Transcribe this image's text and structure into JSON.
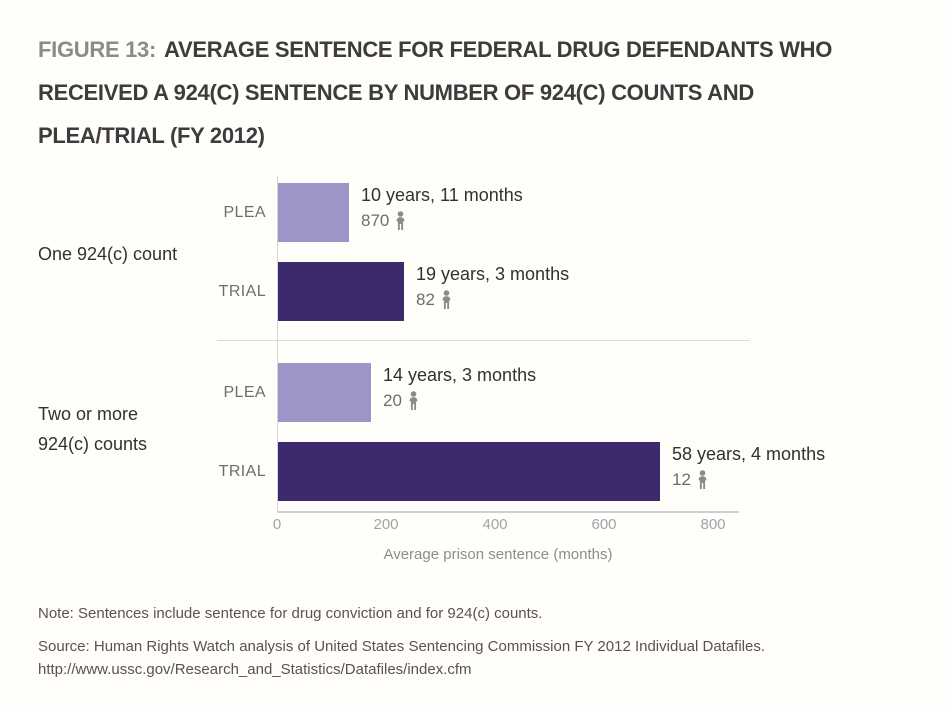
{
  "title": {
    "prefix": "FIGURE 13:",
    "line1": "AVERAGE SENTENCE FOR FEDERAL DRUG DEFENDANTS WHO",
    "line2": "RECEIVED A 924(C) SENTENCE BY NUMBER OF 924(C) COUNTS AND",
    "line3": "PLEA/TRIAL (FY 2012)"
  },
  "chart_data": {
    "type": "bar",
    "orientation": "horizontal",
    "units": "months",
    "xlabel": "Average prison sentence (months)",
    "xlim": [
      0,
      800
    ],
    "xticks": [
      0,
      200,
      400,
      600,
      800
    ],
    "colors": {
      "plea": "#9c95c6",
      "trial": "#3d2a6d"
    },
    "icon": "person-icon",
    "groups": [
      {
        "label": "One 924(c) count",
        "label_lines": [
          "One 924(c) count"
        ],
        "bars": [
          {
            "category": "PLEA",
            "months": 131,
            "duration_label": "10 years, 11 months",
            "count": 870,
            "color_key": "plea"
          },
          {
            "category": "TRIAL",
            "months": 231,
            "duration_label": "19 years, 3 months",
            "count": 82,
            "color_key": "trial"
          }
        ]
      },
      {
        "label": "Two or more 924(c) counts",
        "label_lines": [
          "Two or more",
          "924(c) counts"
        ],
        "bars": [
          {
            "category": "PLEA",
            "months": 171,
            "duration_label": "14 years, 3 months",
            "count": 20,
            "color_key": "plea"
          },
          {
            "category": "TRIAL",
            "months": 700,
            "duration_label": "58 years, 4 months",
            "count": 12,
            "color_key": "trial"
          }
        ]
      }
    ]
  },
  "note": "Note: Sentences include sentence for drug conviction and for 924(c) counts.",
  "source": {
    "line1": "Source: Human Rights Watch analysis of United States Sentencing Commission FY 2012 Individual Datafiles.",
    "line2": "http://www.ussc.gov/Research_and_Statistics/Datafiles/index.cfm"
  }
}
